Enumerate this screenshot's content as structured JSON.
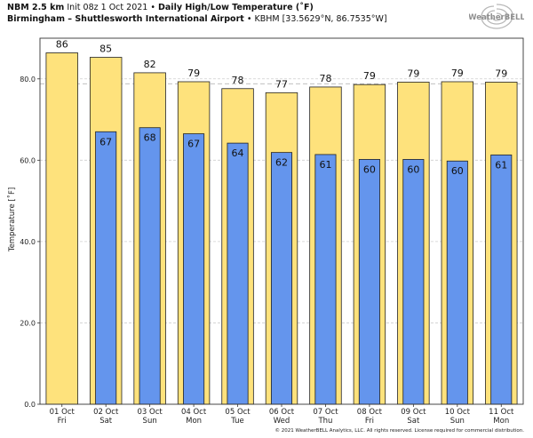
{
  "header": {
    "model": "NBM 2.5 km",
    "init": "Init 08z 1 Oct 2021",
    "product": "Daily High/Low Temperature (˚F)",
    "location": "Birmingham – Shuttlesworth International Airport",
    "station": "KBHM [33.5629°N, 86.7535°W]",
    "separator": "•"
  },
  "logo": {
    "text": "WeatherBELL",
    "icon": "weatherbell-swirl-logo"
  },
  "copyright": "© 2021 WeatherBELL Analytics, LLC. All rights reserved. License required for commercial distribution.",
  "colors": {
    "high": "#fee27c",
    "low": "#6495ed",
    "bar_edge": "#222222",
    "grid": "#cfcfcf",
    "ref_line": "#aaaaaa"
  },
  "chart_data": {
    "type": "bar",
    "ylabel": "Temperature [˚F]",
    "ylim": [
      0,
      90
    ],
    "yticks": [
      0,
      20,
      40,
      60,
      80
    ],
    "ytick_labels": [
      "0.0",
      "20.0",
      "40.0",
      "60.0",
      "80.0"
    ],
    "grid": "horizontal dashed",
    "categories": [
      [
        "01 Oct",
        "Fri"
      ],
      [
        "02 Oct",
        "Sat"
      ],
      [
        "03 Oct",
        "Sun"
      ],
      [
        "04 Oct",
        "Mon"
      ],
      [
        "05 Oct",
        "Tue"
      ],
      [
        "06 Oct",
        "Wed"
      ],
      [
        "07 Oct",
        "Thu"
      ],
      [
        "08 Oct",
        "Fri"
      ],
      [
        "09 Oct",
        "Sat"
      ],
      [
        "10 Oct",
        "Sun"
      ],
      [
        "11 Oct",
        "Mon"
      ]
    ],
    "series": [
      {
        "key": "high",
        "values": [
          86.4,
          85.3,
          81.5,
          79.3,
          77.6,
          76.6,
          78.0,
          78.6,
          79.2,
          79.3,
          79.2
        ]
      },
      {
        "key": "low",
        "values": [
          null,
          67.0,
          68.0,
          66.5,
          64.2,
          61.9,
          61.4,
          60.2,
          60.2,
          59.8,
          61.3
        ]
      }
    ],
    "high_labels": [
      "86",
      "85",
      "82",
      "79",
      "78",
      "77",
      "78",
      "79",
      "79",
      "79",
      "79"
    ],
    "low_labels": [
      "",
      "67",
      "68",
      "67",
      "64",
      "62",
      "61",
      "60",
      "60",
      "60",
      "61"
    ]
  }
}
